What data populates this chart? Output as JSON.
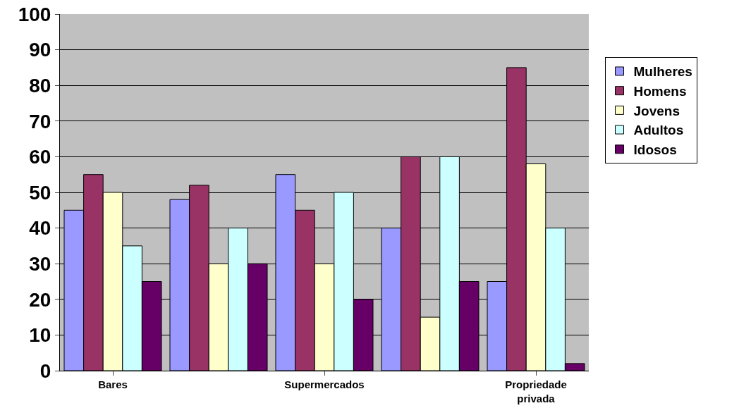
{
  "chart_data": {
    "type": "bar",
    "categories": [
      "Bares",
      null,
      "Supermercados",
      null,
      "Propriedade privada"
    ],
    "series": [
      {
        "name": "Mulheres",
        "color": "#9999ff",
        "values": [
          45,
          48,
          55,
          40,
          25
        ]
      },
      {
        "name": "Homens",
        "color": "#993366",
        "values": [
          55,
          52,
          45,
          60,
          85
        ]
      },
      {
        "name": "Jovens",
        "color": "#ffffcc",
        "values": [
          50,
          30,
          30,
          15,
          58
        ]
      },
      {
        "name": "Adultos",
        "color": "#ccffff",
        "values": [
          35,
          40,
          50,
          60,
          40
        ]
      },
      {
        "name": "Idosos",
        "color": "#660066",
        "values": [
          25,
          30,
          20,
          25,
          2
        ]
      }
    ],
    "ylim": [
      0,
      100
    ],
    "yticks": [
      0,
      10,
      20,
      30,
      40,
      50,
      60,
      70,
      80,
      90,
      100
    ],
    "grid": "y",
    "legend": "right"
  }
}
